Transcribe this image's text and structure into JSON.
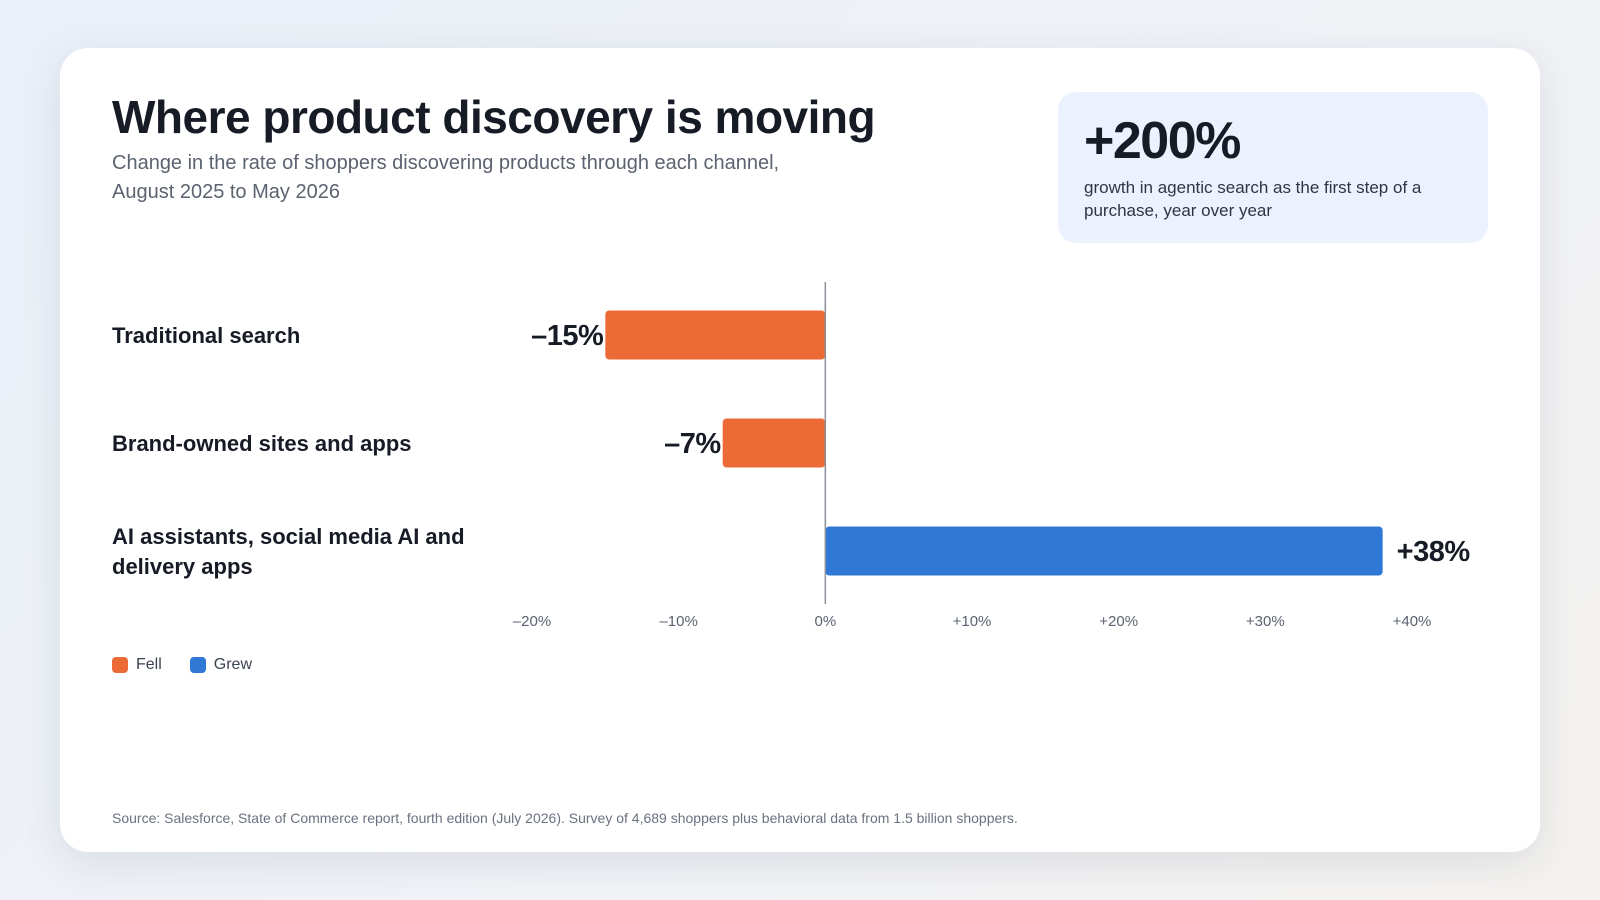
{
  "header": {
    "title": "Where product discovery is moving",
    "subtitle": "Change in the rate of shoppers discovering products through each channel, August 2025 to May 2026"
  },
  "stat": {
    "value": "+200%",
    "caption": "growth in agentic search as the first step of a purchase, year over year"
  },
  "colors": {
    "fell": "#ec6a35",
    "grew": "#2f78d6",
    "axis": "#8a8f99"
  },
  "chart_data": {
    "type": "bar",
    "orientation": "horizontal",
    "categories": [
      [
        "Traditional search"
      ],
      [
        "Brand-owned sites and apps"
      ],
      [
        "AI assistants, social media AI and",
        "delivery apps"
      ]
    ],
    "values": [
      -15,
      -7,
      38
    ],
    "value_labels": [
      "–15%",
      "–7%",
      "+38%"
    ],
    "xlim": [
      -20,
      40
    ],
    "xticks": [
      -20,
      -10,
      0,
      10,
      20,
      30,
      40
    ],
    "xtick_labels": [
      "–20%",
      "–10%",
      "0%",
      "+10%",
      "+20%",
      "+30%",
      "+40%"
    ],
    "grid": false,
    "legend_position": "bottom-left"
  },
  "legend": {
    "items": [
      {
        "label": "Fell",
        "color_key": "fell"
      },
      {
        "label": "Grew",
        "color_key": "grew"
      }
    ]
  },
  "footer": {
    "source": "Source: Salesforce, State of Commerce report, fourth edition (July 2026). Survey of 4,689 shoppers plus behavioral data from 1.5 billion shoppers."
  }
}
